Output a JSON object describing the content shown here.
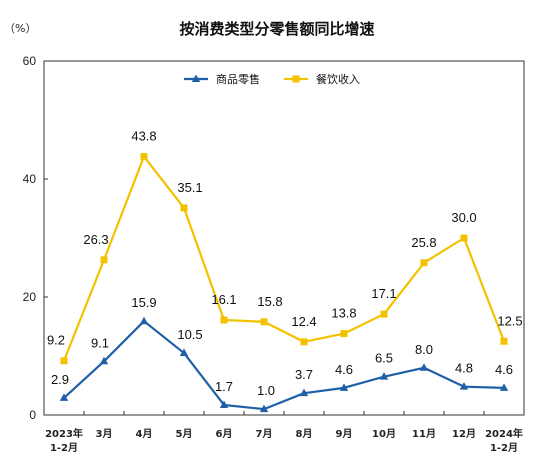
{
  "chart_data": {
    "type": "line",
    "title": "按消费类型分零售额同比增速",
    "unit_label": "（%）",
    "ylim": [
      0,
      60
    ],
    "yticks": [
      "0",
      "20",
      "40",
      "60"
    ],
    "categories": [
      [
        "2023年",
        "1-2月"
      ],
      [
        "3月"
      ],
      [
        "4月"
      ],
      [
        "5月"
      ],
      [
        "6月"
      ],
      [
        "7月"
      ],
      [
        "8月"
      ],
      [
        "9月"
      ],
      [
        "10月"
      ],
      [
        "11月"
      ],
      [
        "12月"
      ],
      [
        "2024年",
        "1-2月"
      ]
    ],
    "series": [
      {
        "name": "商品零售",
        "color": "#1f5fa8",
        "marker": "triangle",
        "values": [
          2.9,
          9.1,
          15.9,
          10.5,
          1.7,
          1.0,
          3.7,
          4.6,
          6.5,
          8.0,
          4.8,
          4.6
        ],
        "labels": [
          "2.9",
          "9.1",
          "15.9",
          "10.5",
          "1.7",
          "1.0",
          "3.7",
          "4.6",
          "6.5",
          "8.0",
          "4.8",
          "4.6"
        ]
      },
      {
        "name": "餐饮收入",
        "color": "#f2c200",
        "marker": "square",
        "values": [
          9.2,
          26.3,
          43.8,
          35.1,
          16.1,
          15.8,
          12.4,
          13.8,
          17.1,
          25.8,
          30.0,
          12.5
        ],
        "labels": [
          "9.2",
          "26.3",
          "43.8",
          "35.1",
          "16.1",
          "15.8",
          "12.4",
          "13.8",
          "17.1",
          "25.8",
          "30.0",
          "12.5"
        ]
      }
    ],
    "legend": "top-center",
    "grid": false
  }
}
